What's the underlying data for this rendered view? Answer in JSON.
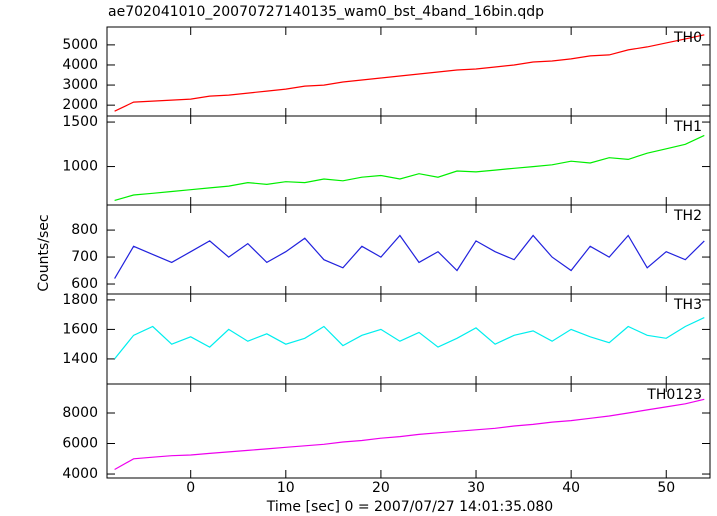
{
  "chart_data": [
    {
      "type": "line",
      "title": "ae702041010_20070727140135_wam0_bst_4band_16bin.qdp",
      "x": [
        -8,
        -6,
        -4,
        -2,
        0,
        2,
        4,
        6,
        8,
        10,
        12,
        14,
        16,
        18,
        20,
        22,
        24,
        26,
        28,
        30,
        32,
        34,
        36,
        38,
        40,
        42,
        44,
        46,
        48,
        50,
        52,
        54
      ],
      "series": [
        {
          "name": "TH0",
          "color": "#ff0000",
          "values": [
            1700,
            2150,
            2200,
            2250,
            2300,
            2450,
            2500,
            2600,
            2700,
            2800,
            2950,
            3000,
            3150,
            3250,
            3350,
            3450,
            3550,
            3650,
            3750,
            3800,
            3900,
            4000,
            4150,
            4200,
            4300,
            4450,
            4500,
            4750,
            4900,
            5100,
            5300,
            5500
          ]
        }
      ],
      "xlim": [
        -8.8,
        54.6
      ],
      "xticks": [
        0,
        10,
        20,
        30,
        40,
        50
      ],
      "ylim": [
        1460,
        5890
      ],
      "yticks": [
        2000,
        3000,
        4000,
        5000
      ]
    },
    {
      "type": "line",
      "x": [
        -8,
        -6,
        -4,
        -2,
        0,
        2,
        4,
        6,
        8,
        10,
        12,
        14,
        16,
        18,
        20,
        22,
        24,
        26,
        28,
        30,
        32,
        34,
        36,
        38,
        40,
        42,
        44,
        46,
        48,
        50,
        52,
        54
      ],
      "series": [
        {
          "name": "TH1",
          "color": "#00ee00",
          "values": [
            620,
            680,
            700,
            720,
            740,
            760,
            780,
            820,
            800,
            830,
            820,
            860,
            840,
            880,
            900,
            860,
            920,
            880,
            950,
            940,
            960,
            980,
            1000,
            1020,
            1060,
            1040,
            1100,
            1080,
            1150,
            1200,
            1250,
            1350
          ]
        }
      ],
      "xlim": [
        -8.8,
        54.6
      ],
      "xticks": [
        0,
        10,
        20,
        30,
        40,
        50
      ],
      "ylim": [
        568,
        1568
      ],
      "yticks": [
        1000,
        1500
      ]
    },
    {
      "type": "line",
      "ylabel": "Counts/sec",
      "x": [
        -8,
        -6,
        -4,
        -2,
        0,
        2,
        4,
        6,
        8,
        10,
        12,
        14,
        16,
        18,
        20,
        22,
        24,
        26,
        28,
        30,
        32,
        34,
        36,
        38,
        40,
        42,
        44,
        46,
        48,
        50,
        52,
        54
      ],
      "series": [
        {
          "name": "TH2",
          "color": "#2222dd",
          "values": [
            620,
            740,
            710,
            680,
            720,
            760,
            700,
            750,
            680,
            720,
            770,
            690,
            660,
            740,
            700,
            780,
            680,
            720,
            650,
            760,
            720,
            690,
            780,
            700,
            650,
            740,
            700,
            780,
            660,
            720,
            690,
            760
          ]
        }
      ],
      "xlim": [
        -8.8,
        54.6
      ],
      "xticks": [
        0,
        10,
        20,
        30,
        40,
        50
      ],
      "ylim": [
        563,
        893
      ],
      "yticks": [
        600,
        700,
        800
      ]
    },
    {
      "type": "line",
      "x": [
        -8,
        -6,
        -4,
        -2,
        0,
        2,
        4,
        6,
        8,
        10,
        12,
        14,
        16,
        18,
        20,
        22,
        24,
        26,
        28,
        30,
        32,
        34,
        36,
        38,
        40,
        42,
        44,
        46,
        48,
        50,
        52,
        54
      ],
      "series": [
        {
          "name": "TH3",
          "color": "#00eeee",
          "values": [
            1400,
            1560,
            1620,
            1500,
            1550,
            1480,
            1600,
            1520,
            1570,
            1500,
            1540,
            1620,
            1490,
            1560,
            1600,
            1520,
            1580,
            1480,
            1540,
            1610,
            1500,
            1560,
            1590,
            1520,
            1600,
            1550,
            1510,
            1620,
            1560,
            1540,
            1620,
            1680
          ]
        }
      ],
      "xlim": [
        -8.8,
        54.6
      ],
      "xticks": [
        0,
        10,
        20,
        30,
        40,
        50
      ],
      "ylim": [
        1230,
        1840
      ],
      "yticks": [
        1400,
        1600,
        1800
      ]
    },
    {
      "type": "line",
      "xlabel": "Time [sec] 0 = 2007/07/27 14:01:35.080",
      "x": [
        -8,
        -6,
        -4,
        -2,
        0,
        2,
        4,
        6,
        8,
        10,
        12,
        14,
        16,
        18,
        20,
        22,
        24,
        26,
        28,
        30,
        32,
        34,
        36,
        38,
        40,
        42,
        44,
        46,
        48,
        50,
        52,
        54
      ],
      "series": [
        {
          "name": "TH0123",
          "color": "#ee00ee",
          "values": [
            4300,
            5000,
            5100,
            5200,
            5250,
            5350,
            5450,
            5550,
            5650,
            5750,
            5850,
            5950,
            6100,
            6200,
            6350,
            6450,
            6600,
            6700,
            6800,
            6900,
            7000,
            7150,
            7250,
            7400,
            7500,
            7650,
            7800,
            8000,
            8200,
            8400,
            8600,
            8900
          ]
        }
      ],
      "xlim": [
        -8.8,
        54.6
      ],
      "xticks": [
        0,
        10,
        20,
        30,
        40,
        50
      ],
      "ylim": [
        3740,
        9900
      ],
      "yticks": [
        4000,
        6000,
        8000
      ]
    }
  ]
}
